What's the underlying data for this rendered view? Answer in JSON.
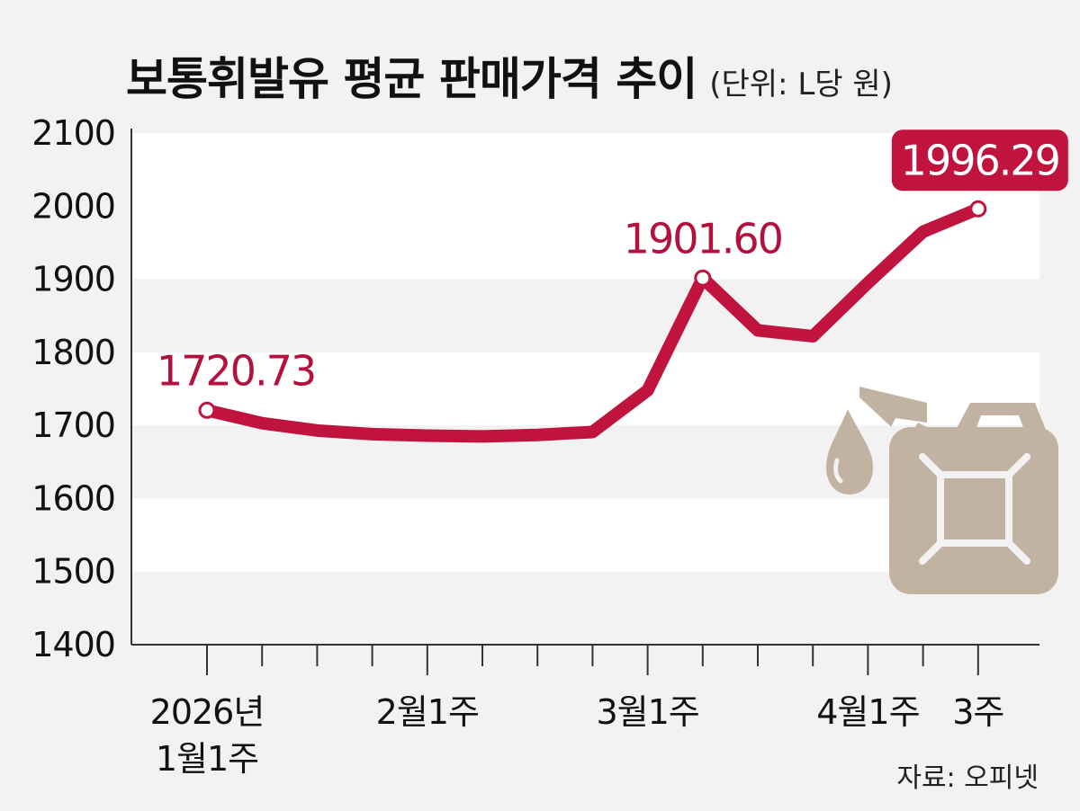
{
  "chart_data": {
    "type": "line",
    "title": "보통휘발유 평균 판매가격 추이",
    "unit": "(단위: L당 원)",
    "ylim": [
      1400,
      2100
    ],
    "yticks": [
      1400,
      1500,
      1600,
      1700,
      1800,
      1900,
      2000,
      2100
    ],
    "x": [
      "2026년 1월1주",
      "",
      "",
      "",
      "2월1주",
      "",
      "",
      "",
      "3월1주",
      "",
      "",
      "",
      "4월1주",
      "",
      "3주"
    ],
    "xtick_labels": [
      {
        "index": 0,
        "lines": [
          "2026년",
          "1월1주"
        ]
      },
      {
        "index": 4,
        "lines": [
          "2월1주"
        ]
      },
      {
        "index": 8,
        "lines": [
          "3월1주"
        ]
      },
      {
        "index": 12,
        "lines": [
          "4월1주"
        ]
      },
      {
        "index": 14,
        "lines": [
          "3주"
        ]
      }
    ],
    "series": [
      {
        "values": [
          1720.73,
          1703,
          1693,
          1688,
          1686,
          1685,
          1687,
          1691,
          1748,
          1901.6,
          1830,
          1822,
          1895,
          1965,
          1996.29
        ],
        "color": "#c0143e"
      }
    ],
    "data_labels": [
      {
        "index": 0,
        "text": "1720.73"
      },
      {
        "index": 9,
        "text": "1901.60"
      },
      {
        "index": 14,
        "text": "1996.29",
        "boxed": true
      }
    ],
    "grid": "alternating horizontal bands",
    "legend": "none"
  },
  "colors": {
    "line": "#c0143e",
    "label": "#b3123f",
    "band": "#ffffff",
    "background": "#f2f2f2",
    "icon": "#c2b2a2"
  },
  "icons": [
    "fuel-can-icon",
    "oil-drop-icon"
  ],
  "source": "자료: 오피넷"
}
